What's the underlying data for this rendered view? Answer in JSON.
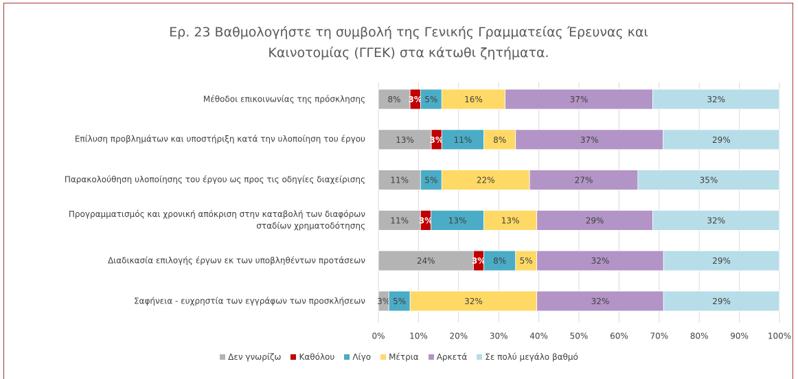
{
  "chart_data": {
    "type": "stacked_barh",
    "title": "Ερ. 23 Βαθμολογήστε τη συμβολή της Γενικής Γραμματείας Έρευνας και\nΚαινοτομίας (ΓΓΕΚ) στα κάτωθι ζητήματα.",
    "categories": [
      "Μέθοδοι επικοινωνίας της πρόσκλησης",
      "Επίλυση προβλημάτων και υποστήριξη κατά την υλοποίηση του έργου",
      "Παρακολούθηση υλοποίησης του έργου ως προς τις οδηγίες διαχείρισης",
      "Προγραμματισμός και χρονική απόκριση στην καταβολή των διαφόρων\nσταδίων χρηματοδότησης",
      "Διαδικασία επιλογής έργων εκ των υποβληθέντων προτάσεων",
      "Σαφήνεια - ευχρηστία των εγγράφων των προσκλήσεων"
    ],
    "series": [
      {
        "name": "Δεν γνωρίζω",
        "color": "#b4b4b4",
        "values": [
          7.9,
          13.2,
          10.5,
          10.5,
          23.7,
          2.6
        ],
        "value_labels": [
          "8%",
          "13%",
          "11%",
          "11%",
          "24%",
          "3%"
        ]
      },
      {
        "name": "Καθόλου",
        "color": "#c00000",
        "values": [
          2.6,
          2.6,
          0,
          2.6,
          2.6,
          0
        ],
        "value_labels": [
          "3%",
          "3%",
          null,
          "3%",
          "3%",
          null
        ]
      },
      {
        "name": "Λίγο",
        "color": "#4bacc6",
        "values": [
          5.3,
          10.5,
          5.3,
          13.2,
          7.9,
          5.3
        ],
        "value_labels": [
          "5%",
          "11%",
          "5%",
          "13%",
          "8%",
          "5%"
        ]
      },
      {
        "name": "Μέτρια",
        "color": "#ffd966",
        "values": [
          15.8,
          7.9,
          21.9,
          13.2,
          5.3,
          31.6
        ],
        "value_labels": [
          "16%",
          "8%",
          "22%",
          "13%",
          "5%",
          "32%"
        ]
      },
      {
        "name": "Αρκετά",
        "color": "#b294c7",
        "values": [
          36.8,
          36.8,
          27.0,
          28.9,
          31.6,
          31.6
        ],
        "value_labels": [
          "37%",
          "37%",
          "27%",
          "29%",
          "32%",
          "32%"
        ]
      },
      {
        "name": "Σε πολύ μεγάλο βαθμό",
        "color": "#b7dde8",
        "values": [
          31.6,
          29.0,
          35.3,
          31.6,
          28.9,
          28.9
        ],
        "value_labels": [
          "32%",
          "29%",
          "35%",
          "32%",
          "29%",
          "29%"
        ]
      }
    ],
    "xlim": [
      0,
      100
    ],
    "xticks": [
      {
        "value": 0,
        "label": "0%"
      },
      {
        "value": 10,
        "label": "10%"
      },
      {
        "value": 20,
        "label": "20%"
      },
      {
        "value": 30,
        "label": "30%"
      },
      {
        "value": 40,
        "label": "40%"
      },
      {
        "value": 50,
        "label": "50%"
      },
      {
        "value": 60,
        "label": "60%"
      },
      {
        "value": 70,
        "label": "70%"
      },
      {
        "value": 80,
        "label": "80%"
      },
      {
        "value": 90,
        "label": "90%"
      },
      {
        "value": 100,
        "label": "100%"
      }
    ],
    "grid": true,
    "legend": "bottom"
  }
}
